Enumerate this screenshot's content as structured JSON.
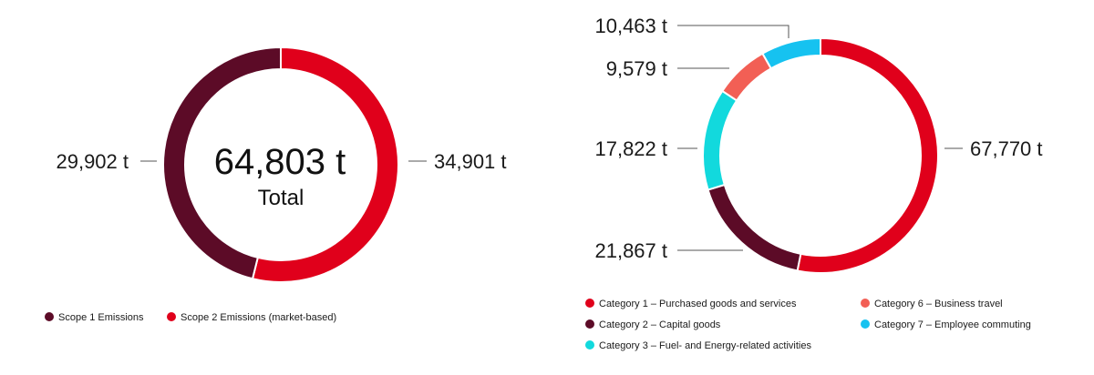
{
  "chart_data": [
    {
      "type": "pie",
      "variant": "donut",
      "unit": "t",
      "center": {
        "value": "64,803 t",
        "caption": "Total"
      },
      "slices": [
        {
          "name": "Scope 1 Emissions",
          "value": 29902,
          "label": "29,902 t",
          "color": "#5c0b27"
        },
        {
          "name": "Scope 2 Emissions (market-based)",
          "value": 34901,
          "label": "34,901 t",
          "color": "#e0001b"
        }
      ],
      "legend_placement": "bottom-left"
    },
    {
      "type": "pie",
      "variant": "donut",
      "unit": "t",
      "slices": [
        {
          "name": "Category 1 – Purchased goods and services",
          "value": 67770,
          "label": "67,770 t",
          "color": "#e0001b"
        },
        {
          "name": "Category 2 – Capital goods",
          "value": 21867,
          "label": "21,867 t",
          "color": "#5c0b27"
        },
        {
          "name": "Category 3 – Fuel- and Energy-related activities",
          "value": 17822,
          "label": "17,822 t",
          "color": "#12d9dd"
        },
        {
          "name": "Category 6 – Business travel",
          "value": 9579,
          "label": "9,579 t",
          "color": "#f25f55"
        },
        {
          "name": "Category 7 – Employee commuting",
          "value": 10463,
          "label": "10,463 t",
          "color": "#16c2f0"
        }
      ],
      "legend_placement": "bottom"
    }
  ]
}
